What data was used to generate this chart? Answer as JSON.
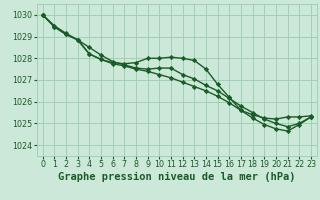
{
  "title": "Graphe pression niveau de la mer (hPa)",
  "hours": [
    0,
    1,
    2,
    3,
    4,
    5,
    6,
    7,
    8,
    9,
    10,
    11,
    12,
    13,
    14,
    15,
    16,
    17,
    18,
    19,
    20,
    21,
    22,
    23
  ],
  "line1_y": [
    1030.0,
    1029.5,
    1029.15,
    1028.85,
    1028.2,
    1027.95,
    1027.8,
    1027.75,
    1027.8,
    1028.0,
    1028.0,
    1028.05,
    1028.0,
    1027.9,
    1027.5,
    1026.8,
    1026.2,
    1025.6,
    1025.4,
    1025.25,
    1025.2,
    1025.3,
    1025.3,
    1025.35
  ],
  "line2_y": [
    1030.0,
    1029.45,
    1029.1,
    1028.85,
    1028.2,
    1027.95,
    1027.75,
    1027.65,
    1027.5,
    1027.4,
    1027.25,
    1027.1,
    1026.9,
    1026.7,
    1026.5,
    1026.25,
    1025.95,
    1025.6,
    1025.25,
    1024.95,
    1024.75,
    1024.65,
    1024.95,
    1025.3
  ],
  "line3_y": [
    1030.0,
    1029.45,
    1029.1,
    1028.85,
    1028.5,
    1028.15,
    1027.85,
    1027.7,
    1027.55,
    1027.5,
    1027.55,
    1027.55,
    1027.25,
    1027.05,
    1026.75,
    1026.5,
    1026.15,
    1025.8,
    1025.5,
    1025.2,
    1025.0,
    1024.85,
    1025.0,
    1025.3
  ],
  "ylim": [
    1023.5,
    1030.5
  ],
  "yticks": [
    1024,
    1025,
    1026,
    1027,
    1028,
    1029,
    1030
  ],
  "bg_color": "#cce8d8",
  "grid_color": "#99ccb0",
  "line_color": "#1a5c28",
  "marker": "D",
  "marker_size": 2.2,
  "line_width": 1.0,
  "title_fontsize": 7.5,
  "tick_fontsize": 5.8,
  "xlabel_color": "#1a5c28",
  "spine_color": "#99ccb0"
}
